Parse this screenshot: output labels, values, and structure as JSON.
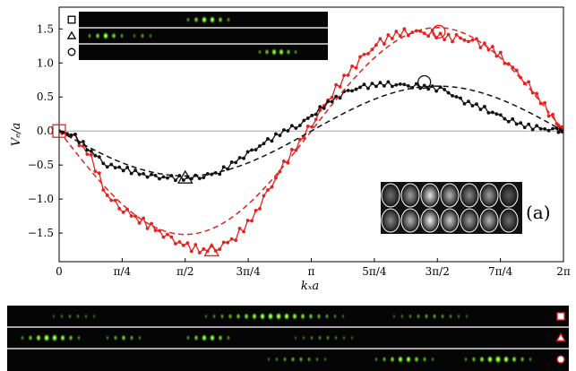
{
  "chart_data": {
    "type": "line",
    "title": "",
    "xlabel": "kₓa",
    "ylabel": "Vₑ/a",
    "xlim": [
      0,
      6.2832
    ],
    "ylim": [
      -1.92,
      1.82
    ],
    "xticks": [
      {
        "value": 0,
        "label": "0"
      },
      {
        "value": 0.7854,
        "label": "π/4"
      },
      {
        "value": 1.5708,
        "label": "π/2"
      },
      {
        "value": 2.3562,
        "label": "3π/4"
      },
      {
        "value": 3.1416,
        "label": "π"
      },
      {
        "value": 3.927,
        "label": "5π/4"
      },
      {
        "value": 4.7124,
        "label": "3π/2"
      },
      {
        "value": 5.4978,
        "label": "7π/4"
      },
      {
        "value": 6.2832,
        "label": "2π"
      }
    ],
    "yticks": [
      {
        "value": 1.5,
        "label": "1.5"
      },
      {
        "value": 1.0,
        "label": "1.0"
      },
      {
        "value": 0.5,
        "label": "0.5"
      },
      {
        "value": 0.0,
        "label": "0.0"
      },
      {
        "value": -0.5,
        "label": "−0.5"
      },
      {
        "value": -1.0,
        "label": "−1.0"
      },
      {
        "value": -1.5,
        "label": "−1.5"
      }
    ],
    "panel_label": "(a)",
    "series": [
      {
        "kind": "data",
        "color": "#e8211d",
        "x": [
          0,
          0.2,
          0.4,
          0.6,
          0.8,
          1.0,
          1.2,
          1.4,
          1.6,
          1.8,
          2.0,
          2.2,
          2.4,
          2.6,
          2.8,
          3.0,
          3.2,
          3.4,
          3.6,
          3.8,
          4.0,
          4.2,
          4.4,
          4.6,
          4.8,
          5.0,
          5.2,
          5.4,
          5.6,
          5.8,
          6.0,
          6.2,
          6.2832
        ],
        "y": [
          0.0,
          -0.1,
          -0.4,
          -0.95,
          -1.15,
          -1.3,
          -1.45,
          -1.6,
          -1.7,
          -1.75,
          -1.7,
          -1.55,
          -1.3,
          -0.9,
          -0.5,
          -0.15,
          0.2,
          0.55,
          0.85,
          1.1,
          1.3,
          1.43,
          1.47,
          1.45,
          1.38,
          1.35,
          1.3,
          1.2,
          1.0,
          0.75,
          0.45,
          0.1,
          0.0
        ]
      },
      {
        "kind": "data",
        "color": "#111111",
        "x": [
          0,
          0.2,
          0.4,
          0.6,
          0.8,
          1.0,
          1.2,
          1.4,
          1.6,
          1.8,
          2.0,
          2.2,
          2.4,
          2.6,
          2.8,
          3.0,
          3.2,
          3.4,
          3.6,
          3.8,
          4.0,
          4.2,
          4.4,
          4.6,
          4.8,
          5.0,
          5.2,
          5.4,
          5.6,
          5.8,
          6.0,
          6.2,
          6.2832
        ],
        "y": [
          0.0,
          -0.08,
          -0.3,
          -0.5,
          -0.55,
          -0.63,
          -0.68,
          -0.69,
          -0.69,
          -0.66,
          -0.6,
          -0.45,
          -0.3,
          -0.15,
          0.0,
          0.1,
          0.28,
          0.45,
          0.58,
          0.65,
          0.69,
          0.69,
          0.67,
          0.64,
          0.6,
          0.45,
          0.37,
          0.28,
          0.17,
          0.08,
          0.03,
          0.01,
          0.0
        ]
      },
      {
        "kind": "fit",
        "color": "#e8211d",
        "dashed": true,
        "amplitude": 1.52,
        "formula": "-A*sin(x)"
      },
      {
        "kind": "fit",
        "color": "#111111",
        "dashed": true,
        "amplitude": 0.66,
        "formula": "-A*sin(x)"
      }
    ],
    "markers": [
      {
        "shape": "square",
        "x": 0.0,
        "y": 0.0,
        "color": "#e8211d"
      },
      {
        "shape": "triangle",
        "x": 1.5708,
        "y": -0.69,
        "color": "#111111"
      },
      {
        "shape": "circle",
        "x": 4.55,
        "y": 0.72,
        "color": "#111111"
      },
      {
        "shape": "triangle",
        "x": 1.9,
        "y": -1.76,
        "color": "#e8211d"
      },
      {
        "shape": "circle",
        "x": 4.73,
        "y": 1.46,
        "color": "#e8211d"
      }
    ],
    "strip_inset_symbols": [
      "square",
      "triangle",
      "circle"
    ],
    "bottom_strip_symbols": [
      "square",
      "triangle",
      "circle"
    ]
  }
}
